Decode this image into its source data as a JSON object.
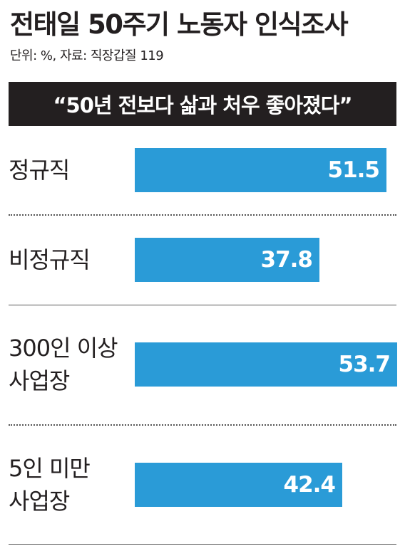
{
  "title": "전태일 50주기 노동자 인식조사",
  "source": "단위: %, 자료: 직장갑질 119",
  "banner": "“50년 전보다 삶과 처우 좋아졌다”",
  "colors": {
    "bar": "#2a9bd7",
    "banner_bg": "#231f20",
    "text": "#231f20"
  },
  "chart_data": {
    "type": "bar",
    "orientation": "horizontal",
    "title": "전태일 50주기 노동자 인식조사",
    "subtitle": "“50년 전보다 삶과 처우 좋아졌다”",
    "unit": "%",
    "categories": [
      "정규직",
      "비정규직",
      "300인 이상 사업장",
      "5인 미만 사업장"
    ],
    "category_lines": [
      [
        "정규직"
      ],
      [
        "비정규직"
      ],
      [
        "300인 이상",
        "사업장"
      ],
      [
        "5인 미만",
        "사업장"
      ]
    ],
    "values": [
      51.5,
      37.8,
      53.7,
      42.4
    ],
    "value_labels": [
      "51.5",
      "37.8",
      "53.7",
      "42.4"
    ],
    "grid": false
  }
}
